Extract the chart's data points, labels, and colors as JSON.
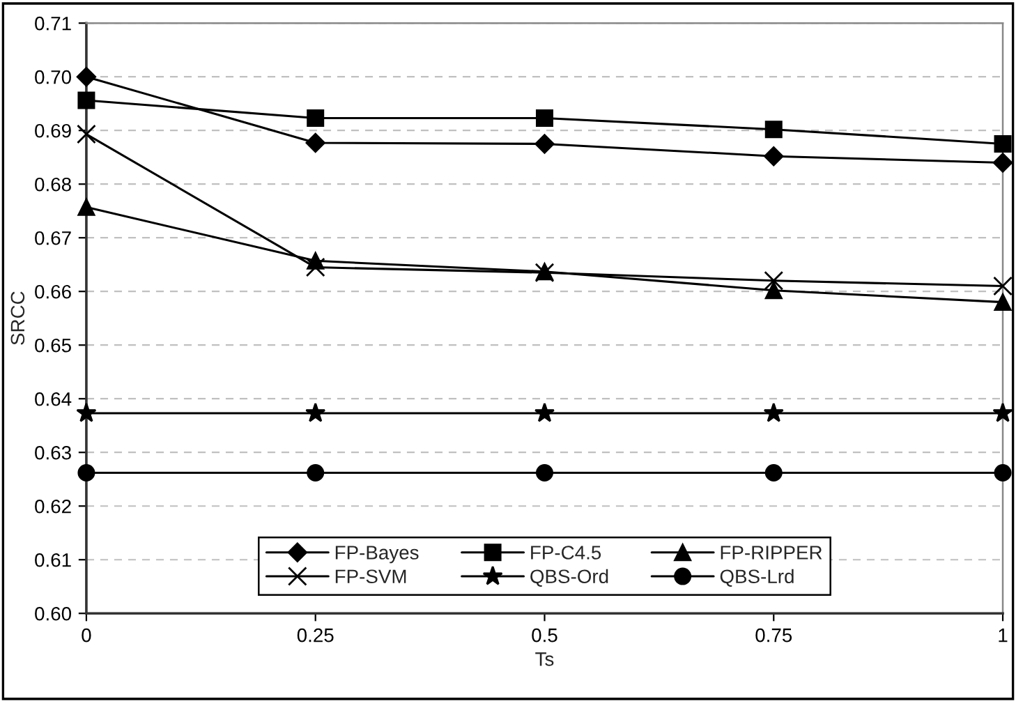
{
  "chart_data": {
    "type": "line",
    "xlabel": "Ts",
    "ylabel": "SRCC",
    "x": [
      0,
      0.25,
      0.5,
      0.75,
      1
    ],
    "series": [
      {
        "name": "FP-Bayes",
        "color": "#000000",
        "marker": "diamond",
        "values": [
          0.7,
          0.6877,
          0.6875,
          0.6852,
          0.684
        ]
      },
      {
        "name": "FP-C4.5",
        "color": "#000000",
        "marker": "square",
        "values": [
          0.6956,
          0.6923,
          0.6923,
          0.6902,
          0.6875
        ]
      },
      {
        "name": "FP-RIPPER",
        "color": "#000000",
        "marker": "triangle",
        "values": [
          0.6757,
          0.6657,
          0.6637,
          0.6602,
          0.658
        ]
      },
      {
        "name": "FP-SVM",
        "color": "#000000",
        "marker": "cross",
        "values": [
          0.6893,
          0.6645,
          0.6635,
          0.662,
          0.661
        ]
      },
      {
        "name": "QBS-Ord",
        "color": "#000000",
        "marker": "star",
        "values": [
          0.6373,
          0.6373,
          0.6373,
          0.6373,
          0.6373
        ]
      },
      {
        "name": "QBS-Lrd",
        "color": "#000000",
        "marker": "circle",
        "values": [
          0.6262,
          0.6262,
          0.6262,
          0.6262,
          0.6262
        ]
      }
    ],
    "xlim": [
      0,
      1
    ],
    "xticks": [
      0,
      0.25,
      0.5,
      0.75,
      1
    ],
    "ylim": [
      0.6,
      0.71
    ],
    "yticks": [
      {
        "value": 0.6,
        "label": "0.60"
      },
      {
        "value": 0.61,
        "label": "0.61"
      },
      {
        "value": 0.62,
        "label": "0.62"
      },
      {
        "value": 0.63,
        "label": "0.63"
      },
      {
        "value": 0.64,
        "label": "0.64"
      },
      {
        "value": 0.65,
        "label": "0.65"
      },
      {
        "value": 0.66,
        "label": "0.66"
      },
      {
        "value": 0.67,
        "label": "0.67"
      },
      {
        "value": 0.68,
        "label": "0.68"
      },
      {
        "value": 0.69,
        "label": "0.69"
      },
      {
        "value": 0.7,
        "label": "0.70"
      },
      {
        "value": 0.71,
        "label": "0.71"
      }
    ],
    "grid": "y",
    "legend": "bottom",
    "line_style": "solid"
  }
}
